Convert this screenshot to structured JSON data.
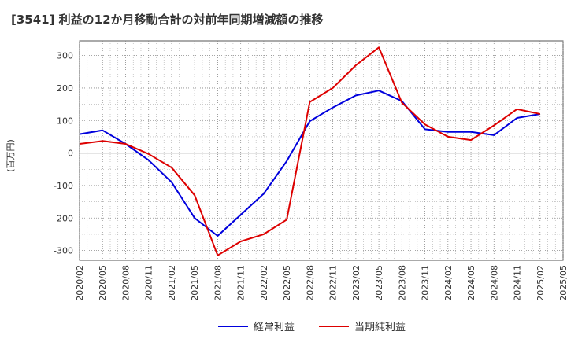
{
  "chart_data": {
    "type": "line",
    "title": "[3541]  利益の12か月移動合計の対前年同期増減額の推移",
    "ylabel": "(百万円)",
    "xlabel": "",
    "ylim": [
      -330,
      345
    ],
    "yticks": [
      -300,
      -200,
      -100,
      0,
      100,
      200,
      300
    ],
    "grid": true,
    "legend_position": "bottom-center",
    "x_tick_labels": [
      "2020/02",
      "2020/05",
      "2020/08",
      "2020/11",
      "2021/02",
      "2021/05",
      "2021/08",
      "2021/11",
      "2022/02",
      "2022/05",
      "2022/08",
      "2022/11",
      "2023/02",
      "2023/05",
      "2023/08",
      "2023/11",
      "2024/02",
      "2024/05",
      "2024/08",
      "2024/11",
      "2025/02",
      "2025/05"
    ],
    "series": [
      {
        "name": "経常利益",
        "color": "#0000dd",
        "values": [
          58,
          70,
          28,
          -22,
          -90,
          -200,
          -255,
          -190,
          -125,
          -25,
          98,
          140,
          177,
          192,
          160,
          73,
          65,
          65,
          55,
          108,
          120
        ]
      },
      {
        "name": "当期純利益",
        "color": "#dd0000",
        "values": [
          28,
          37,
          28,
          -3,
          -45,
          -130,
          -315,
          -272,
          -250,
          -205,
          157,
          200,
          270,
          325,
          155,
          88,
          50,
          40,
          85,
          135,
          120
        ]
      }
    ]
  }
}
